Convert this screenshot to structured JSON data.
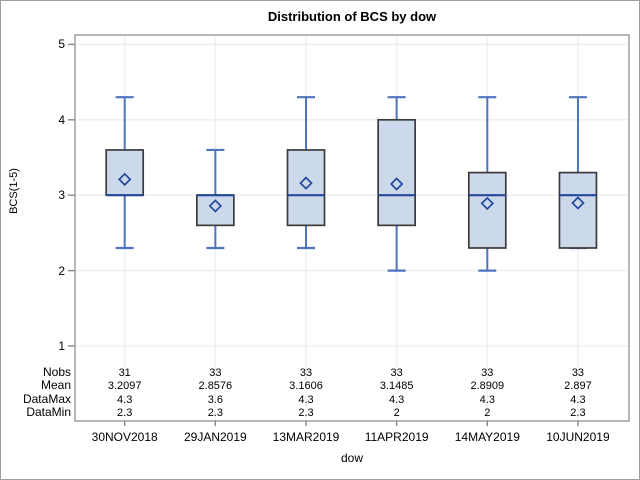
{
  "chart_data": {
    "type": "box",
    "title": "Distribution of BCS by dow",
    "xlabel": "dow",
    "ylabel": "BCS(1-5)",
    "ylim": [
      1,
      5
    ],
    "yticks": [
      1,
      2,
      3,
      4,
      5
    ],
    "grid": true,
    "legend": "none",
    "categories": [
      "30NOV2018",
      "29JAN2019",
      "13MAR2019",
      "11APR2019",
      "14MAY2019",
      "10JUN2019"
    ],
    "series": [
      {
        "category": "30NOV2018",
        "whisker_low": 2.3,
        "q1": 3.0,
        "median": 3.0,
        "q3": 3.6,
        "whisker_high": 4.3,
        "mean": 3.2097
      },
      {
        "category": "29JAN2019",
        "whisker_low": 2.3,
        "q1": 2.6,
        "median": 3.0,
        "q3": 3.0,
        "whisker_high": 3.6,
        "mean": 2.8576
      },
      {
        "category": "13MAR2019",
        "whisker_low": 2.3,
        "q1": 2.6,
        "median": 3.0,
        "q3": 3.6,
        "whisker_high": 4.3,
        "mean": 3.1606
      },
      {
        "category": "11APR2019",
        "whisker_low": 2.0,
        "q1": 2.6,
        "median": 3.0,
        "q3": 4.0,
        "whisker_high": 4.3,
        "mean": 3.1485
      },
      {
        "category": "14MAY2019",
        "whisker_low": 2.0,
        "q1": 2.3,
        "median": 3.0,
        "q3": 3.3,
        "whisker_high": 4.3,
        "mean": 2.8909
      },
      {
        "category": "10JUN2019",
        "whisker_low": 2.3,
        "q1": 2.3,
        "median": 3.0,
        "q3": 3.3,
        "whisker_high": 4.3,
        "mean": 2.897
      }
    ],
    "stats_table": {
      "row_labels": [
        "Nobs",
        "Mean",
        "DataMax",
        "DataMin"
      ],
      "rows": [
        [
          "31",
          "33",
          "33",
          "33",
          "33",
          "33"
        ],
        [
          "3.2097",
          "2.8576",
          "3.1606",
          "3.1485",
          "2.8909",
          "2.897"
        ],
        [
          "4.3",
          "3.6",
          "4.3",
          "4.3",
          "4.3",
          "4.3"
        ],
        [
          "2.3",
          "2.3",
          "2.3",
          "2",
          "2",
          "2.3"
        ]
      ]
    },
    "colors": {
      "box_fill": "#CCD9EA",
      "box_border": "#3B3B3B",
      "whisker": "#4F74BD",
      "median": "#26489C",
      "mean_diamond": "#26489C",
      "gridline": "#F0F0F0",
      "frame_border": "#979B9E",
      "tick_mark": "#84888B",
      "text": "#000000",
      "background": "#FFFFFF"
    }
  }
}
